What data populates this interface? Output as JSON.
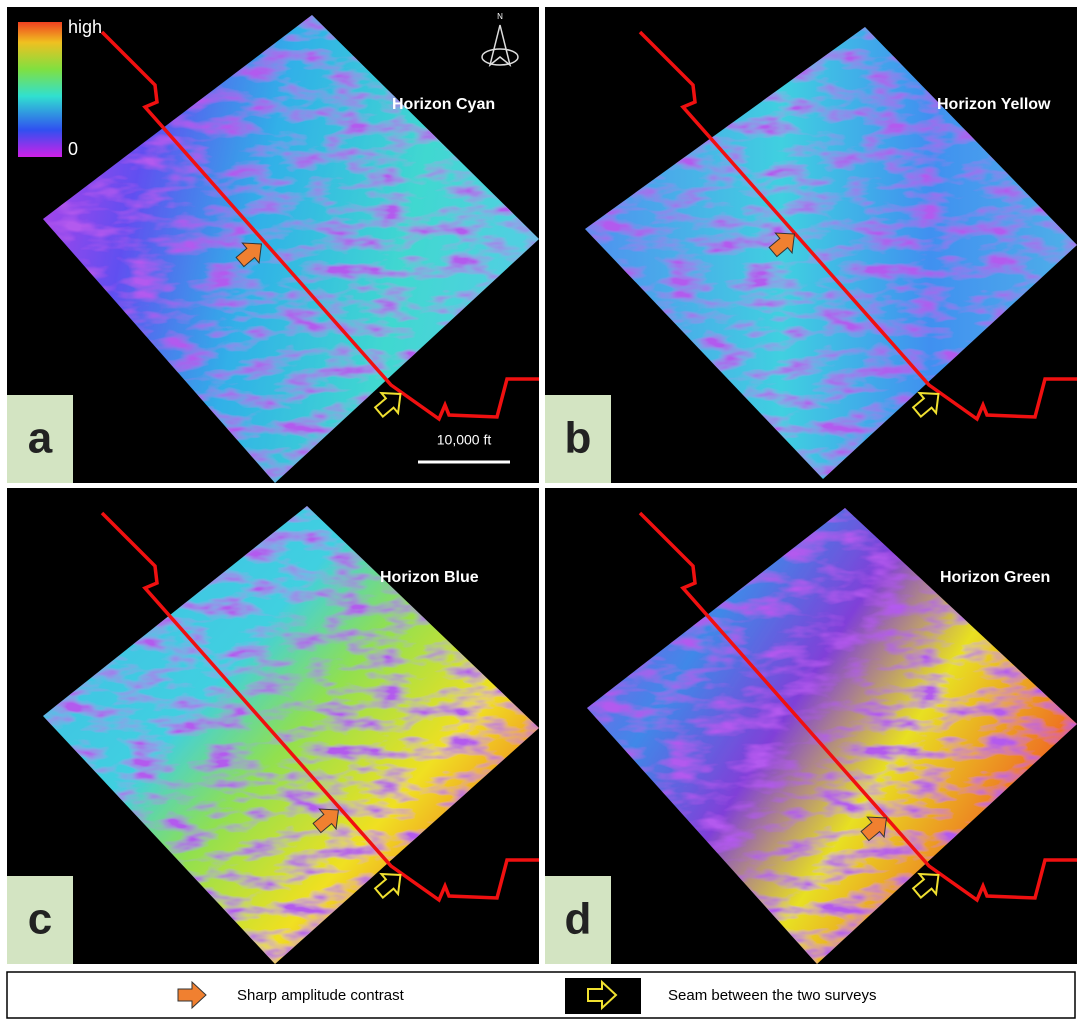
{
  "colorbar": {
    "max_label": "high",
    "min_label": "0"
  },
  "north_label": "N",
  "scale_bar": "10,000 ft",
  "panels": [
    {
      "letter": "a",
      "title": "Horizon Cyan"
    },
    {
      "letter": "b",
      "title": "Horizon Yellow"
    },
    {
      "letter": "c",
      "title": "Horizon Blue"
    },
    {
      "letter": "d",
      "title": "Horizon Green"
    }
  ],
  "legend": [
    {
      "label": "Sharp amplitude contrast"
    },
    {
      "label": "Seam between the two surveys"
    }
  ]
}
